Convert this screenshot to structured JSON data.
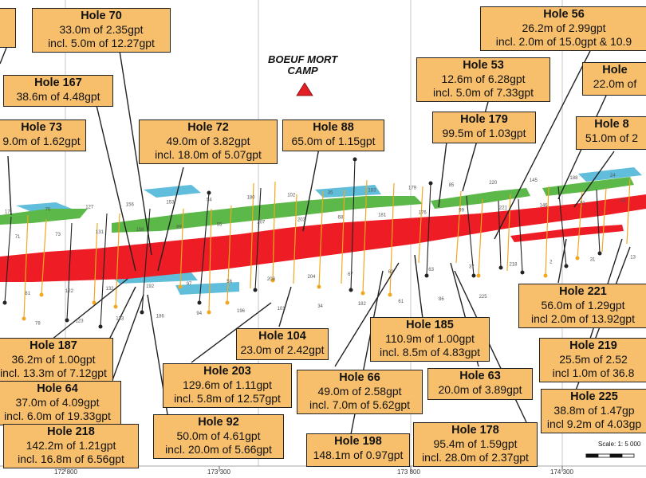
{
  "camp": {
    "line1": "BOEUF MORT",
    "line2": "CAMP"
  },
  "scale": "Scale: 1: 5 000",
  "grid_labels": [
    "172 800",
    "173 300",
    "173 800",
    "174 300"
  ],
  "colors": {
    "label_fill": "#f7bf6b",
    "ore_red": "#ee1c25",
    "ore_green": "#5cb848",
    "ore_blue": "#4fb7d8",
    "drill_orange": "#f0a81e",
    "camp_marker": "#e31e24"
  },
  "holes": [
    {
      "title": "",
      "lines": [
        "",
        "",
        ""
      ]
    },
    {
      "title": "Hole 70",
      "lines": [
        "33.0m of 2.35gpt",
        "incl. 5.0m of 12.27gpt"
      ]
    },
    {
      "title": "Hole 167",
      "lines": [
        "38.6m of 4.48gpt"
      ]
    },
    {
      "title": "Hole 73",
      "lines": [
        "9.0m of 1.62gpt"
      ]
    },
    {
      "title": "Hole 72",
      "lines": [
        "49.0m of 3.82gpt",
        "incl. 18.0m of 5.07gpt"
      ]
    },
    {
      "title": "Hole 88",
      "lines": [
        "65.0m of 1.15gpt"
      ]
    },
    {
      "title": "Hole 53",
      "lines": [
        "12.6m of 6.28gpt",
        "incl. 5.0m of 7.33gpt"
      ]
    },
    {
      "title": "Hole 179",
      "lines": [
        "99.5m of 1.03gpt"
      ]
    },
    {
      "title": "Hole 56",
      "lines": [
        "26.2m of 2.99gpt",
        "incl. 2.0m of 15.0gpt & 10.9"
      ]
    },
    {
      "title": "Hole",
      "lines": [
        "22.0m of"
      ]
    },
    {
      "title": "Hole 8",
      "lines": [
        "51.0m of 2"
      ]
    },
    {
      "title": "Hole 187",
      "lines": [
        "36.2m of 1.00gpt",
        "incl. 13.3m of 7.12gpt"
      ]
    },
    {
      "title": "Hole 64",
      "lines": [
        "37.0m of 4.09gpt",
        "incl. 6.0m of 19.33gpt"
      ]
    },
    {
      "title": "Hole 218",
      "lines": [
        "142.2m of 1.21gpt",
        "incl. 16.8m of 6.56gpt"
      ]
    },
    {
      "title": "Hole 203",
      "lines": [
        "129.6m of 1.11gpt",
        "incl. 5.8m of 12.57gpt"
      ]
    },
    {
      "title": "Hole 92",
      "lines": [
        "50.0m of 4.61gpt",
        "incl. 20.0m of 5.66gpt"
      ]
    },
    {
      "title": "Hole 104",
      "lines": [
        "23.0m of 2.42gpt"
      ]
    },
    {
      "title": "Hole 185",
      "lines": [
        "110.9m of 1.00gpt",
        "incl. 8.5m of 4.83gpt"
      ]
    },
    {
      "title": "Hole 66",
      "lines": [
        "49.0m of 2.58gpt",
        "incl. 7.0m of 5.62gpt"
      ]
    },
    {
      "title": "Hole 63",
      "lines": [
        "20.0m of 3.89gpt"
      ]
    },
    {
      "title": "Hole 198",
      "lines": [
        "148.1m of 0.97gpt"
      ]
    },
    {
      "title": "Hole 178",
      "lines": [
        "95.4m of 1.59gpt",
        "incl. 28.0m of 2.37gpt"
      ]
    },
    {
      "title": "Hole 221",
      "lines": [
        "56.0m of 1.29gpt",
        "incl 2.0m of 13.92gpt"
      ]
    },
    {
      "title": "Hole 219",
      "lines": [
        "25.5m of 2.52",
        "incl 1.0m of 36.8"
      ]
    },
    {
      "title": "Hole 225",
      "lines": [
        "38.8m of 1.47gp",
        "incl 9.2m of 4.03gp"
      ]
    }
  ],
  "hole_numbers": [
    "17",
    "71",
    "81",
    "78",
    "76",
    "73",
    "122",
    "123",
    "127",
    "131",
    "132",
    "133",
    "156",
    "158",
    "192",
    "186",
    "153",
    "89",
    "97",
    "94",
    "54",
    "55",
    "56",
    "196",
    "180",
    "207",
    "208",
    "101",
    "102",
    "203",
    "204",
    "34",
    "35",
    "68",
    "67",
    "182",
    "183",
    "181",
    "62",
    "61",
    "179",
    "176",
    "63",
    "86",
    "85",
    "99",
    "37",
    "225",
    "220",
    "221",
    "218",
    "219",
    "145",
    "146",
    "2",
    "124",
    "188",
    "91",
    "31",
    "21",
    "24",
    "43",
    "13"
  ]
}
